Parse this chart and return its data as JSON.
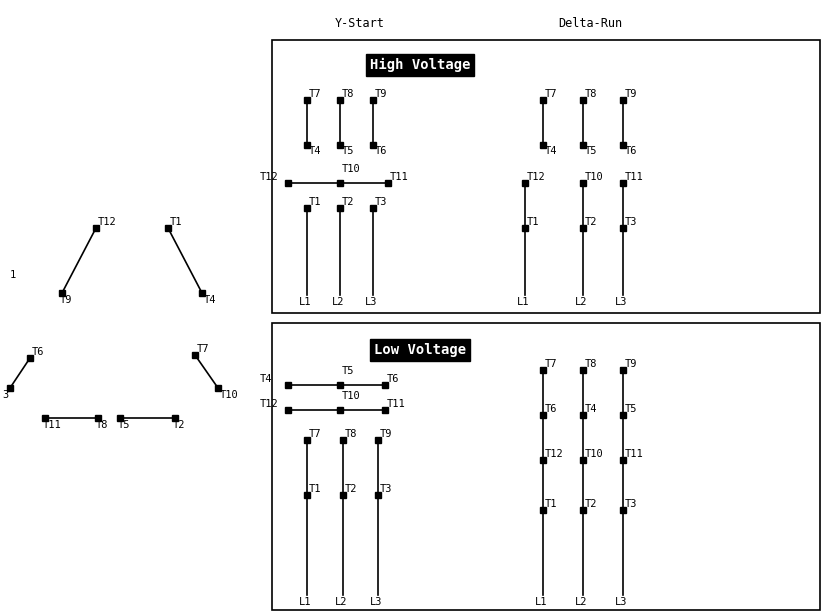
{
  "bg_color": "#ffffff",
  "line_color": "#000000",
  "dot_color": "#000000",
  "text_color": "#000000",
  "label_bg": "#000000",
  "label_fg": "#ffffff",
  "fs": 7.5,
  "dot_ms": 4,
  "lw": 1.2,
  "header_y_start": "Y-Start",
  "header_delta_run": "Delta-Run",
  "label_high": "High Voltage",
  "label_low": "Low Voltage"
}
